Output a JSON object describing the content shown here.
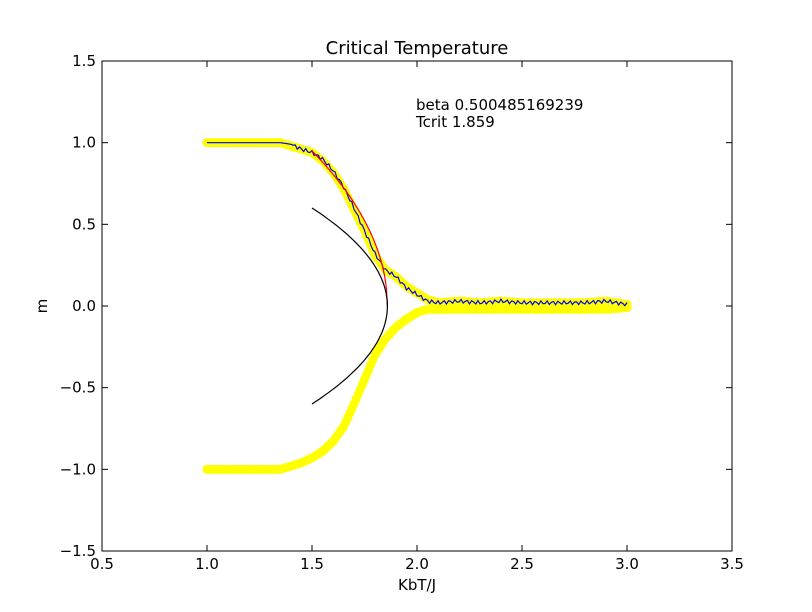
{
  "chart_data": {
    "type": "scatter",
    "title": "Critical Temperature",
    "xlabel": "KbT/J",
    "ylabel": "m",
    "xlim": [
      0.5,
      3.5
    ],
    "ylim": [
      -1.5,
      1.5
    ],
    "xticks": [
      "0.5",
      "1.0",
      "1.5",
      "2.0",
      "2.5",
      "3.0",
      "3.5"
    ],
    "yticks": [
      "1.5",
      "1.0",
      "0.5",
      "0.0",
      "−0.5",
      "−1.0",
      "−1.5"
    ],
    "grid": false,
    "annotations": [
      "beta 0.500485169239",
      "Tcrit 1.859"
    ],
    "beta": 0.500485169239,
    "tcrit": 1.859,
    "series": [
      {
        "kind": "scatter",
        "color": "#ffff00",
        "x": [
          1.0,
          1.05,
          1.1,
          1.15,
          1.2,
          1.25,
          1.3,
          1.35,
          1.4,
          1.45,
          1.5,
          1.55,
          1.6,
          1.65,
          1.7,
          1.75,
          1.8,
          1.85,
          1.9,
          1.95,
          2.0,
          2.05,
          2.1,
          2.2,
          2.3,
          2.4,
          2.5,
          2.6,
          2.7,
          2.8,
          2.9,
          3.0
        ],
        "upper": [
          1.0,
          1.0,
          1.0,
          1.0,
          1.0,
          1.0,
          1.0,
          1.0,
          0.98,
          0.96,
          0.94,
          0.89,
          0.82,
          0.72,
          0.59,
          0.46,
          0.31,
          0.22,
          0.18,
          0.12,
          0.08,
          0.04,
          0.02,
          0.03,
          0.02,
          0.03,
          0.02,
          0.02,
          0.02,
          0.02,
          0.03,
          0.01
        ],
        "lower": [
          -1.0,
          -1.0,
          -1.0,
          -1.0,
          -1.0,
          -1.0,
          -1.0,
          -1.0,
          -0.98,
          -0.96,
          -0.93,
          -0.89,
          -0.83,
          -0.74,
          -0.6,
          -0.45,
          -0.3,
          -0.2,
          -0.13,
          -0.08,
          -0.04,
          -0.02,
          -0.02,
          -0.02,
          -0.02,
          -0.02,
          -0.02,
          -0.02,
          -0.02,
          -0.02,
          -0.02,
          -0.01
        ]
      },
      {
        "kind": "line",
        "color": "#0000ff",
        "x": [
          1.0,
          1.1,
          1.2,
          1.3,
          1.35,
          1.4,
          1.45,
          1.5,
          1.55,
          1.6,
          1.65,
          1.7,
          1.75,
          1.8,
          1.85,
          1.9,
          1.95,
          2.0,
          2.05,
          2.1,
          2.2,
          2.3,
          2.4,
          2.5,
          2.6,
          2.7,
          2.8,
          2.9,
          3.0
        ],
        "y": [
          1.0,
          1.0,
          1.0,
          1.0,
          1.0,
          0.99,
          0.96,
          0.94,
          0.9,
          0.83,
          0.73,
          0.6,
          0.46,
          0.32,
          0.22,
          0.18,
          0.11,
          0.07,
          0.03,
          0.02,
          0.03,
          0.02,
          0.03,
          0.02,
          0.02,
          0.02,
          0.02,
          0.03,
          0.01
        ]
      },
      {
        "kind": "fit",
        "color": "#ff0000",
        "x_range": [
          1.5,
          1.859
        ]
      },
      {
        "kind": "fit-mirror",
        "color": "#000000",
        "x_range": [
          1.5,
          1.859
        ]
      }
    ]
  }
}
